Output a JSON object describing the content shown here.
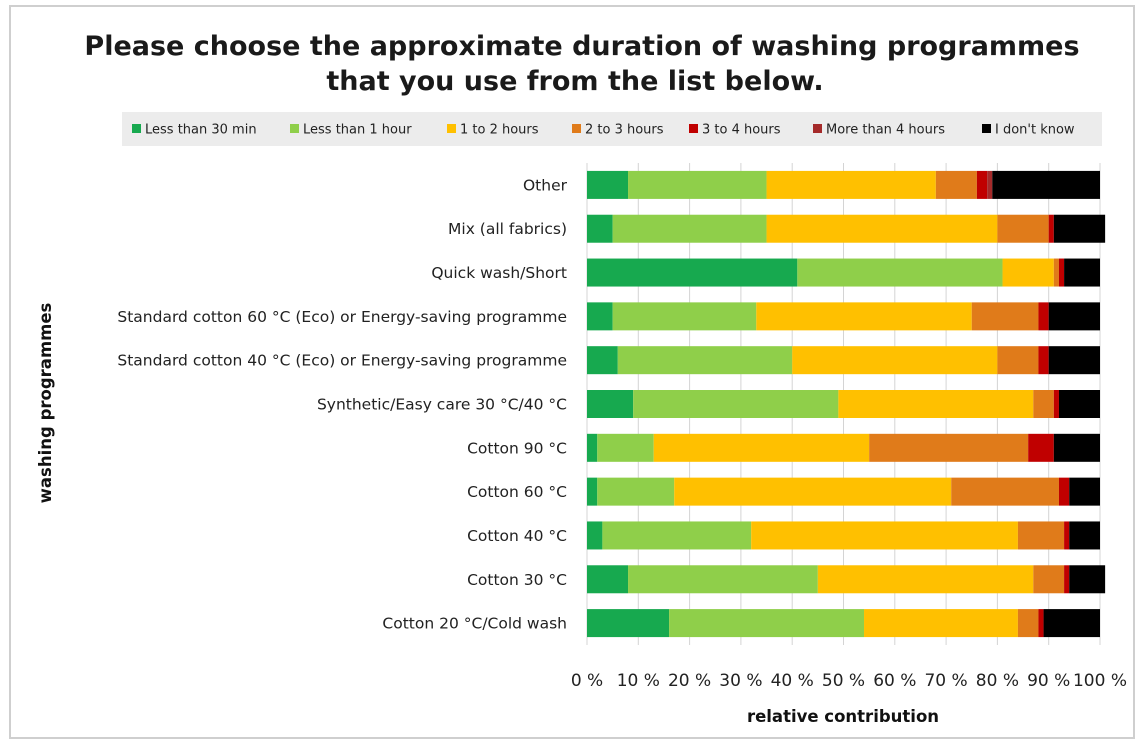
{
  "chart_data": {
    "type": "bar",
    "orientation": "horizontal",
    "stacked": true,
    "title": "Please choose the approximate duration of washing programmes that you use from the list below.",
    "title_lines": [
      "Please choose the approximate duration of washing programmes",
      "that you use from the list below."
    ],
    "xlabel": "relative contribution",
    "ylabel": "washing programmes",
    "xlim": [
      0,
      100
    ],
    "x_ticks": [
      "0 %",
      "10 %",
      "20 %",
      "30 %",
      "40 %",
      "50 %",
      "60 %",
      "70 %",
      "80 %",
      "90 %",
      "100 %"
    ],
    "legend_position": "top",
    "grid": true,
    "categories": [
      "Other",
      "Mix (all fabrics)",
      "Quick wash/Short",
      "Standard cotton 60 °C (Eco) or Energy-saving programme",
      "Standard cotton 40 °C (Eco) or Energy-saving programme",
      "Synthetic/Easy care 30 °C/40 °C",
      "Cotton 90 °C",
      "Cotton 60 °C",
      "Cotton 40 °C",
      "Cotton 30 °C",
      "Cotton 20 °C/Cold wash"
    ],
    "series": [
      {
        "name": "Less than 30 min",
        "color": "#17a94f",
        "values": [
          8,
          5,
          41,
          5,
          6,
          9,
          2,
          2,
          3,
          8,
          16
        ]
      },
      {
        "name": "Less than 1 hour",
        "color": "#8fcf4a",
        "values": [
          27,
          30,
          40,
          28,
          34,
          40,
          11,
          15,
          29,
          37,
          38
        ]
      },
      {
        "name": "1 to 2 hours",
        "color": "#ffc000",
        "values": [
          33,
          45,
          10,
          42,
          40,
          38,
          42,
          54,
          52,
          42,
          30
        ]
      },
      {
        "name": "2 to 3 hours",
        "color": "#e07b1a",
        "values": [
          8,
          10,
          1,
          13,
          8,
          4,
          31,
          21,
          9,
          6,
          4
        ]
      },
      {
        "name": "3 to 4 hours",
        "color": "#c00000",
        "values": [
          2,
          1,
          1,
          2,
          2,
          1,
          5,
          2,
          1,
          1,
          1
        ]
      },
      {
        "name": "More than 4 hours",
        "color": "#a52a2a",
        "values": [
          1,
          0,
          0,
          0,
          0,
          0,
          0,
          0,
          0,
          0,
          0
        ]
      },
      {
        "name": "I don't know",
        "color": "#000000",
        "values": [
          21,
          10,
          7,
          10,
          10,
          8,
          9,
          6,
          6,
          7,
          11
        ]
      }
    ]
  }
}
